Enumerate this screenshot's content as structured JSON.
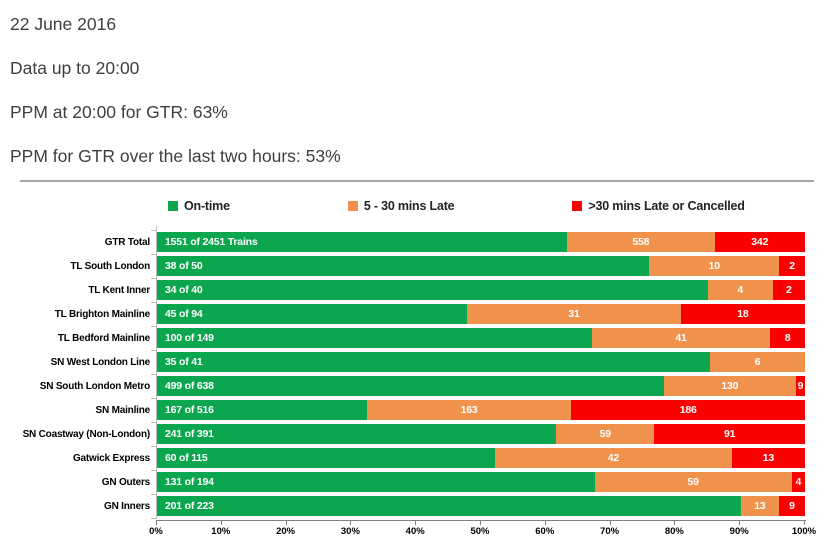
{
  "header": {
    "lines": [
      "22 June 2016",
      "Data up to 20:00",
      "PPM at 20:00 for GTR: 63%",
      "PPM for GTR over the last two hours: 53%"
    ]
  },
  "chart_data": {
    "type": "bar",
    "orientation": "horizontal",
    "stacked": true,
    "title": "",
    "xlabel": "",
    "ylabel": "",
    "xlim_percent": [
      0,
      100
    ],
    "grid": false,
    "legend_position": "top",
    "legend": [
      {
        "label": "On-time",
        "color": "#0CA64F"
      },
      {
        "label": "5 - 30 mins Late",
        "color": "#F0924C"
      },
      {
        "label": ">30 mins Late or Cancelled",
        "color": "#FB0000"
      }
    ],
    "x_ticks": [
      "0%",
      "10%",
      "20%",
      "30%",
      "40%",
      "50%",
      "60%",
      "70%",
      "80%",
      "90%",
      "100%"
    ],
    "rows": [
      {
        "category": "GTR Total",
        "on_time": 1551,
        "on_time_label": "1551 of 2451 Trains",
        "late_5_30": 558,
        "late_30_or_cancelled": 342,
        "total": 2451
      },
      {
        "category": "TL South London",
        "on_time": 38,
        "on_time_label": "38 of 50",
        "late_5_30": 10,
        "late_30_or_cancelled": 2,
        "total": 50
      },
      {
        "category": "TL Kent Inner",
        "on_time": 34,
        "on_time_label": "34 of 40",
        "late_5_30": 4,
        "late_30_or_cancelled": 2,
        "total": 40
      },
      {
        "category": "TL Brighton Mainline",
        "on_time": 45,
        "on_time_label": "45 of 94",
        "late_5_30": 31,
        "late_30_or_cancelled": 18,
        "total": 94
      },
      {
        "category": "TL Bedford Mainline",
        "on_time": 100,
        "on_time_label": "100 of 149",
        "late_5_30": 41,
        "late_30_or_cancelled": 8,
        "total": 149
      },
      {
        "category": "SN West London Line",
        "on_time": 35,
        "on_time_label": "35 of 41",
        "late_5_30": 6,
        "late_30_or_cancelled": 0,
        "total": 41
      },
      {
        "category": "SN South London Metro",
        "on_time": 499,
        "on_time_label": "499 of 638",
        "late_5_30": 130,
        "late_30_or_cancelled": 9,
        "total": 638
      },
      {
        "category": "SN Mainline",
        "on_time": 167,
        "on_time_label": "167 of 516",
        "late_5_30": 163,
        "late_30_or_cancelled": 186,
        "total": 516
      },
      {
        "category": "SN Coastway (Non-London)",
        "on_time": 241,
        "on_time_label": "241 of 391",
        "late_5_30": 59,
        "late_30_or_cancelled": 91,
        "total": 391
      },
      {
        "category": "Gatwick Express",
        "on_time": 60,
        "on_time_label": "60 of 115",
        "late_5_30": 42,
        "late_30_or_cancelled": 13,
        "total": 115
      },
      {
        "category": "GN Outers",
        "on_time": 131,
        "on_time_label": "131 of 194",
        "late_5_30": 59,
        "late_30_or_cancelled": 4,
        "total": 194
      },
      {
        "category": "GN Inners",
        "on_time": 201,
        "on_time_label": "201 of 223",
        "late_5_30": 13,
        "late_30_or_cancelled": 9,
        "total": 223
      }
    ]
  }
}
